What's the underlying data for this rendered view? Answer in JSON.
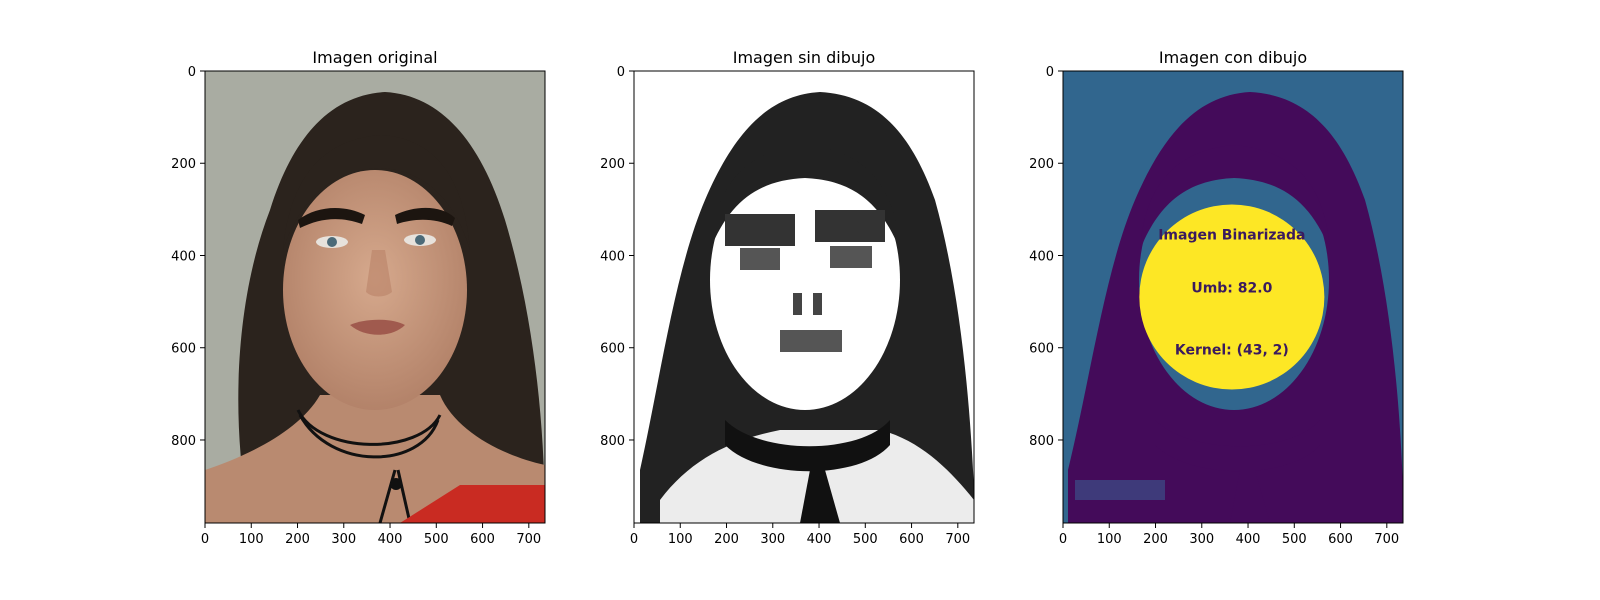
{
  "figure": {
    "panels": [
      {
        "title": "Imagen original",
        "kind": "photo"
      },
      {
        "title": "Imagen sin dibujo",
        "kind": "grayscale"
      },
      {
        "title": "Imagen con dibujo",
        "kind": "viridis",
        "overlay": [
          "Imagen Binarizada",
          "Umb: 82.0",
          "Kernel: (43, 2)"
        ]
      }
    ]
  },
  "chart_data": [
    {
      "type": "image",
      "title": "Imagen original",
      "xlim": [
        0,
        735
      ],
      "ylim": [
        980,
        0
      ],
      "xticks": [
        0,
        100,
        200,
        300,
        400,
        500,
        600,
        700
      ],
      "yticks": [
        0,
        200,
        400,
        600,
        800
      ],
      "colors": {
        "background": "#a9aca2",
        "hair": "#2b231d",
        "skin": "#c79a80",
        "accent": "#c92b22"
      }
    },
    {
      "type": "image",
      "title": "Imagen sin dibujo",
      "xlim": [
        0,
        735
      ],
      "ylim": [
        980,
        0
      ],
      "xticks": [
        0,
        100,
        200,
        300,
        400,
        500,
        600,
        700
      ],
      "yticks": [
        0,
        200,
        400,
        600,
        800
      ],
      "colors": {
        "background": "#ffffff",
        "hair": "#1e1e1e",
        "skin": "#ffffff",
        "features": "#3c3c3c"
      }
    },
    {
      "type": "image",
      "title": "Imagen con dibujo",
      "xlim": [
        0,
        735
      ],
      "ylim": [
        980,
        0
      ],
      "xticks": [
        0,
        100,
        200,
        300,
        400,
        500,
        600,
        700
      ],
      "yticks": [
        0,
        200,
        400,
        600,
        800
      ],
      "colors": {
        "background": "#31668e",
        "hair": "#440b5a",
        "circle": "#fde725",
        "text": "#3a1a5e"
      },
      "annotations": [
        {
          "text": "Imagen Binarizada",
          "x": 365,
          "y": 365
        },
        {
          "text": "Umb: 82.0",
          "x": 365,
          "y": 480
        },
        {
          "text": "Kernel: (43, 2)",
          "x": 365,
          "y": 615
        }
      ],
      "circle": {
        "cx": 365,
        "cy": 490,
        "r": 200
      }
    }
  ]
}
